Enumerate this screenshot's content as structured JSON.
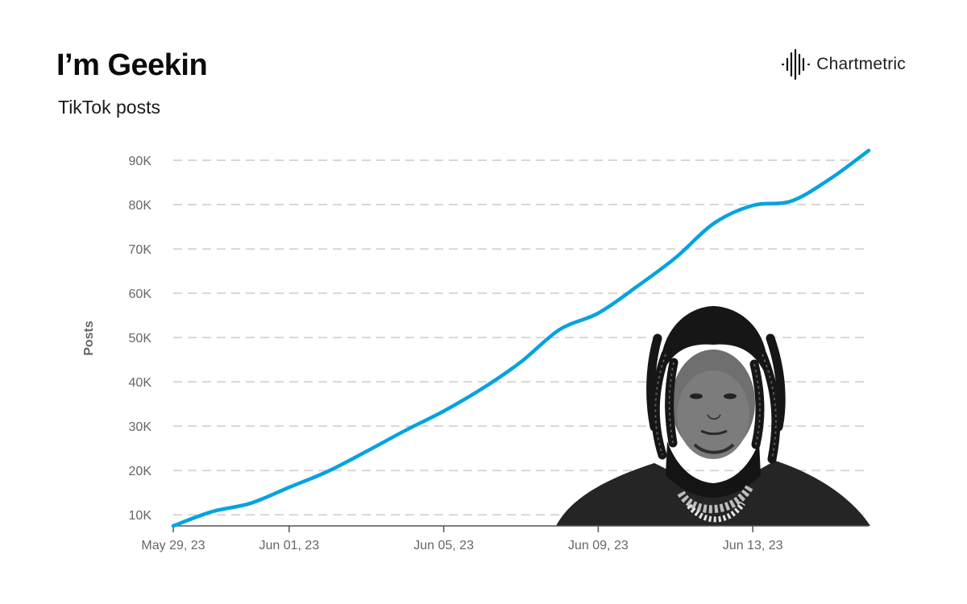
{
  "header": {
    "title": "I’m Geekin",
    "subtitle": "TikTok posts"
  },
  "brand": {
    "name": "Chartmetric",
    "icon": "waveform-logo-icon"
  },
  "colors": {
    "line": "#05a3e0",
    "grid": "#d7d7d7",
    "tick_text": "#666666"
  },
  "chart_data": {
    "type": "line",
    "title": "I’m Geekin",
    "subtitle": "TikTok posts",
    "xlabel": "",
    "ylabel": "Posts",
    "x_ticks": [
      "May 29, 23",
      "Jun 01, 23",
      "Jun 05, 23",
      "Jun 09, 23",
      "Jun 13, 23"
    ],
    "x_tick_dates": [
      "2023-05-29",
      "2023-06-01",
      "2023-06-05",
      "2023-06-09",
      "2023-06-13"
    ],
    "x_range": [
      "2023-05-29",
      "2023-06-16"
    ],
    "y_ticks": [
      "10K",
      "20K",
      "30K",
      "40K",
      "50K",
      "60K",
      "70K",
      "80K",
      "90K"
    ],
    "y_tick_values": [
      10000,
      20000,
      30000,
      40000,
      50000,
      60000,
      70000,
      80000,
      90000
    ],
    "ylim": [
      7500,
      92000
    ],
    "grid": "horizontal dashed",
    "legend": "none",
    "series": [
      {
        "x": [
          "2023-05-29",
          "2023-05-30",
          "2023-05-31",
          "2023-06-01",
          "2023-06-02",
          "2023-06-03",
          "2023-06-04",
          "2023-06-05",
          "2023-06-06",
          "2023-06-07",
          "2023-06-08",
          "2023-06-09",
          "2023-06-10",
          "2023-06-11",
          "2023-06-12",
          "2023-06-13",
          "2023-06-14",
          "2023-06-15",
          "2023-06-16"
        ],
        "y": [
          7500,
          10700,
          12600,
          16200,
          19800,
          24300,
          29000,
          33400,
          38500,
          44500,
          51800,
          55500,
          61500,
          68000,
          75800,
          79800,
          80800,
          85800,
          92200
        ]
      }
    ]
  }
}
